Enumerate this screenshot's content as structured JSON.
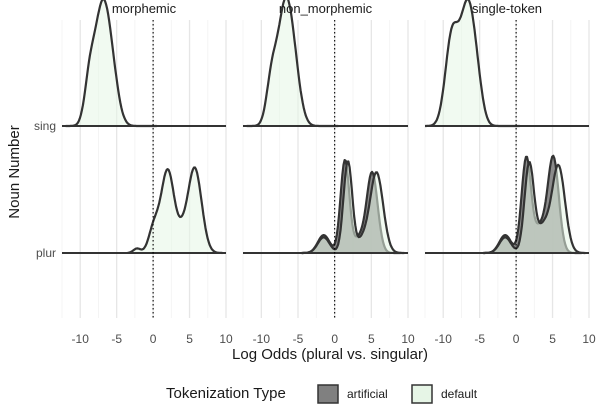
{
  "chart_data": {
    "type": "ridgeline-density",
    "facets": [
      "morphemic",
      "non_morphemic",
      "single-token"
    ],
    "xlabel": "Log Odds (plural vs. singular)",
    "ylabel": "Noun Number",
    "x_ticks": [
      -10,
      -5,
      0,
      5,
      10
    ],
    "x_tick_labels": [
      "-10",
      "-5",
      "0",
      "5",
      "10"
    ],
    "xlim": [
      -12.5,
      10
    ],
    "y_categories": [
      "sing",
      "plur"
    ],
    "reference_line_x": 0,
    "legend": {
      "title": "Tokenization Type",
      "position": "bottom",
      "items": [
        {
          "label": "artificial",
          "color": "#808080"
        },
        {
          "label": "default",
          "color": "#e6f5e6"
        }
      ]
    },
    "grid": true,
    "panels": [
      {
        "facet": "morphemic",
        "ridges": [
          {
            "row": "sing",
            "series": "default",
            "range": [
              -12,
              0.5
            ],
            "peaks": [
              {
                "x": -8.7,
                "h": 0.38,
                "w": 0.7
              },
              {
                "x": -7.0,
                "h": 1.0,
                "w": 1.0
              },
              {
                "x": -5.6,
                "h": 0.35,
                "w": 0.9
              }
            ]
          },
          {
            "row": "plur",
            "series": "default",
            "range": [
              -3.5,
              9.5
            ],
            "peaks": [
              {
                "x": -2.2,
                "h": 0.04,
                "w": 0.5
              },
              {
                "x": 0.1,
                "h": 0.22,
                "w": 0.7
              },
              {
                "x": 2.0,
                "h": 0.74,
                "w": 0.9
              },
              {
                "x": 5.7,
                "h": 0.76,
                "w": 0.95
              },
              {
                "x": 3.9,
                "h": 0.12,
                "w": 0.7
              }
            ]
          }
        ]
      },
      {
        "facet": "non_morphemic",
        "ridges": [
          {
            "row": "sing",
            "series": "default",
            "range": [
              -12,
              0.5
            ],
            "peaks": [
              {
                "x": -8.6,
                "h": 0.38,
                "w": 0.7
              },
              {
                "x": -6.8,
                "h": 1.0,
                "w": 1.0
              },
              {
                "x": -5.5,
                "h": 0.35,
                "w": 0.9
              }
            ]
          },
          {
            "row": "plur",
            "series": "artificial",
            "range": [
              -4.5,
              9
            ],
            "peaks": [
              {
                "x": -1.5,
                "h": 0.16,
                "w": 0.8
              },
              {
                "x": 1.4,
                "h": 0.83,
                "w": 0.6
              },
              {
                "x": 5.1,
                "h": 0.72,
                "w": 0.75
              },
              {
                "x": 3.3,
                "h": 0.12,
                "w": 0.7
              }
            ]
          },
          {
            "row": "plur",
            "series": "default",
            "range": [
              -4.5,
              9.5
            ],
            "peaks": [
              {
                "x": -1.5,
                "h": 0.14,
                "w": 0.8
              },
              {
                "x": 1.8,
                "h": 0.82,
                "w": 0.6
              },
              {
                "x": 5.7,
                "h": 0.72,
                "w": 0.9
              },
              {
                "x": 3.7,
                "h": 0.1,
                "w": 0.7
              }
            ]
          }
        ]
      },
      {
        "facet": "single-token",
        "ridges": [
          {
            "row": "sing",
            "series": "default",
            "range": [
              -12.5,
              0.5
            ],
            "peaks": [
              {
                "x": -8.8,
                "h": 0.8,
                "w": 0.9
              },
              {
                "x": -6.7,
                "h": 1.0,
                "w": 0.95
              },
              {
                "x": -5.4,
                "h": 0.3,
                "w": 0.8
              }
            ]
          },
          {
            "row": "plur",
            "series": "artificial",
            "range": [
              -4.5,
              9
            ],
            "peaks": [
              {
                "x": -1.5,
                "h": 0.16,
                "w": 0.8
              },
              {
                "x": 1.4,
                "h": 0.85,
                "w": 0.65
              },
              {
                "x": 5.1,
                "h": 0.85,
                "w": 0.75
              },
              {
                "x": 3.3,
                "h": 0.22,
                "w": 0.8
              }
            ]
          },
          {
            "row": "plur",
            "series": "default",
            "range": [
              -4.5,
              9.5
            ],
            "peaks": [
              {
                "x": -1.5,
                "h": 0.14,
                "w": 0.8
              },
              {
                "x": 1.8,
                "h": 0.8,
                "w": 0.65
              },
              {
                "x": 5.8,
                "h": 0.78,
                "w": 0.9
              },
              {
                "x": 3.7,
                "h": 0.22,
                "w": 0.8
              }
            ]
          }
        ]
      }
    ]
  }
}
